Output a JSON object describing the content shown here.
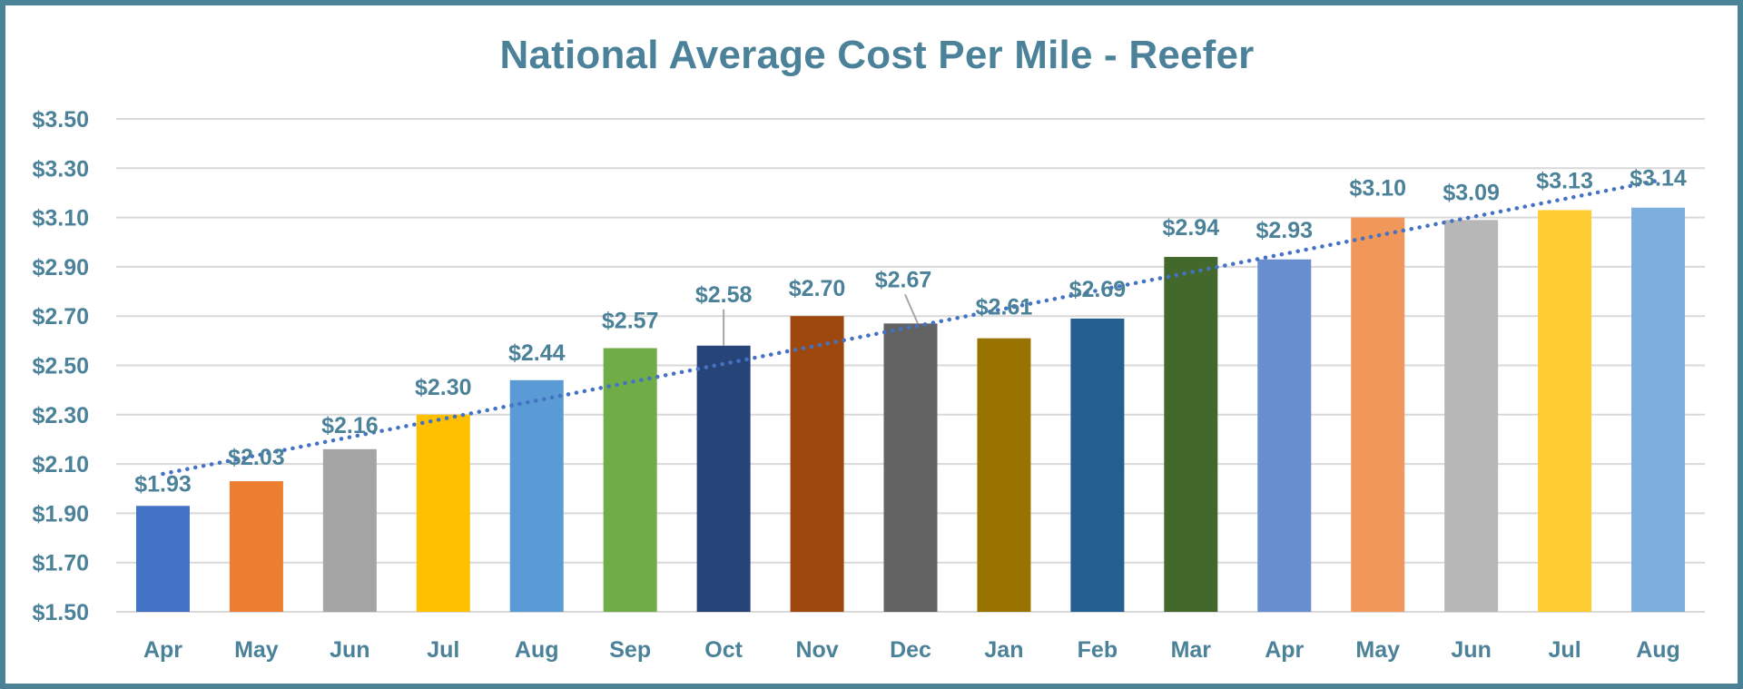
{
  "chart_data": {
    "type": "bar",
    "title": "National Average Cost Per Mile - Reefer",
    "xlabel": "",
    "ylabel": "",
    "categories": [
      "Apr",
      "May",
      "Jun",
      "Jul",
      "Aug",
      "Sep",
      "Oct",
      "Nov",
      "Dec",
      "Jan",
      "Feb",
      "Mar",
      "Apr",
      "May",
      "Jun",
      "Jul",
      "Aug"
    ],
    "values": [
      1.93,
      2.03,
      2.16,
      2.3,
      2.44,
      2.57,
      2.58,
      2.7,
      2.67,
      2.61,
      2.69,
      2.94,
      2.93,
      3.1,
      3.09,
      3.13,
      3.14
    ],
    "data_labels": [
      "$1.93",
      "$2.03",
      "$2.16",
      "$2.30",
      "$2.44",
      "$2.57",
      "$2.58",
      "$2.70",
      "$2.67",
      "$2.61",
      "$2.69",
      "$2.94",
      "$2.93",
      "$3.10",
      "$3.09",
      "$3.13",
      "$3.14"
    ],
    "bar_colors": [
      "#4472c4",
      "#ed7d31",
      "#a5a5a5",
      "#ffc000",
      "#5b9bd5",
      "#70ad47",
      "#264478",
      "#9e480e",
      "#636363",
      "#997300",
      "#255e91",
      "#43682b",
      "#698ed0",
      "#f1975a",
      "#b7b7b7",
      "#ffcd33",
      "#7cafdd"
    ],
    "ylim": [
      1.5,
      3.5
    ],
    "yticks": [
      1.5,
      1.7,
      1.9,
      2.1,
      2.3,
      2.5,
      2.7,
      2.9,
      3.1,
      3.3,
      3.5
    ],
    "ytick_labels": [
      "$1.50",
      "$1.70",
      "$1.90",
      "$2.10",
      "$2.30",
      "$2.50",
      "$2.70",
      "$2.90",
      "$3.10",
      "$3.30",
      "$3.50"
    ],
    "grid": true,
    "legend": "none",
    "trendline": {
      "type": "linear",
      "style": "dotted",
      "color": "#4472c4",
      "start": 2.06,
      "end": 3.25
    }
  },
  "colors": {
    "frame": "#4a8296",
    "text": "#4b8299",
    "grid": "#d9d9d9"
  }
}
